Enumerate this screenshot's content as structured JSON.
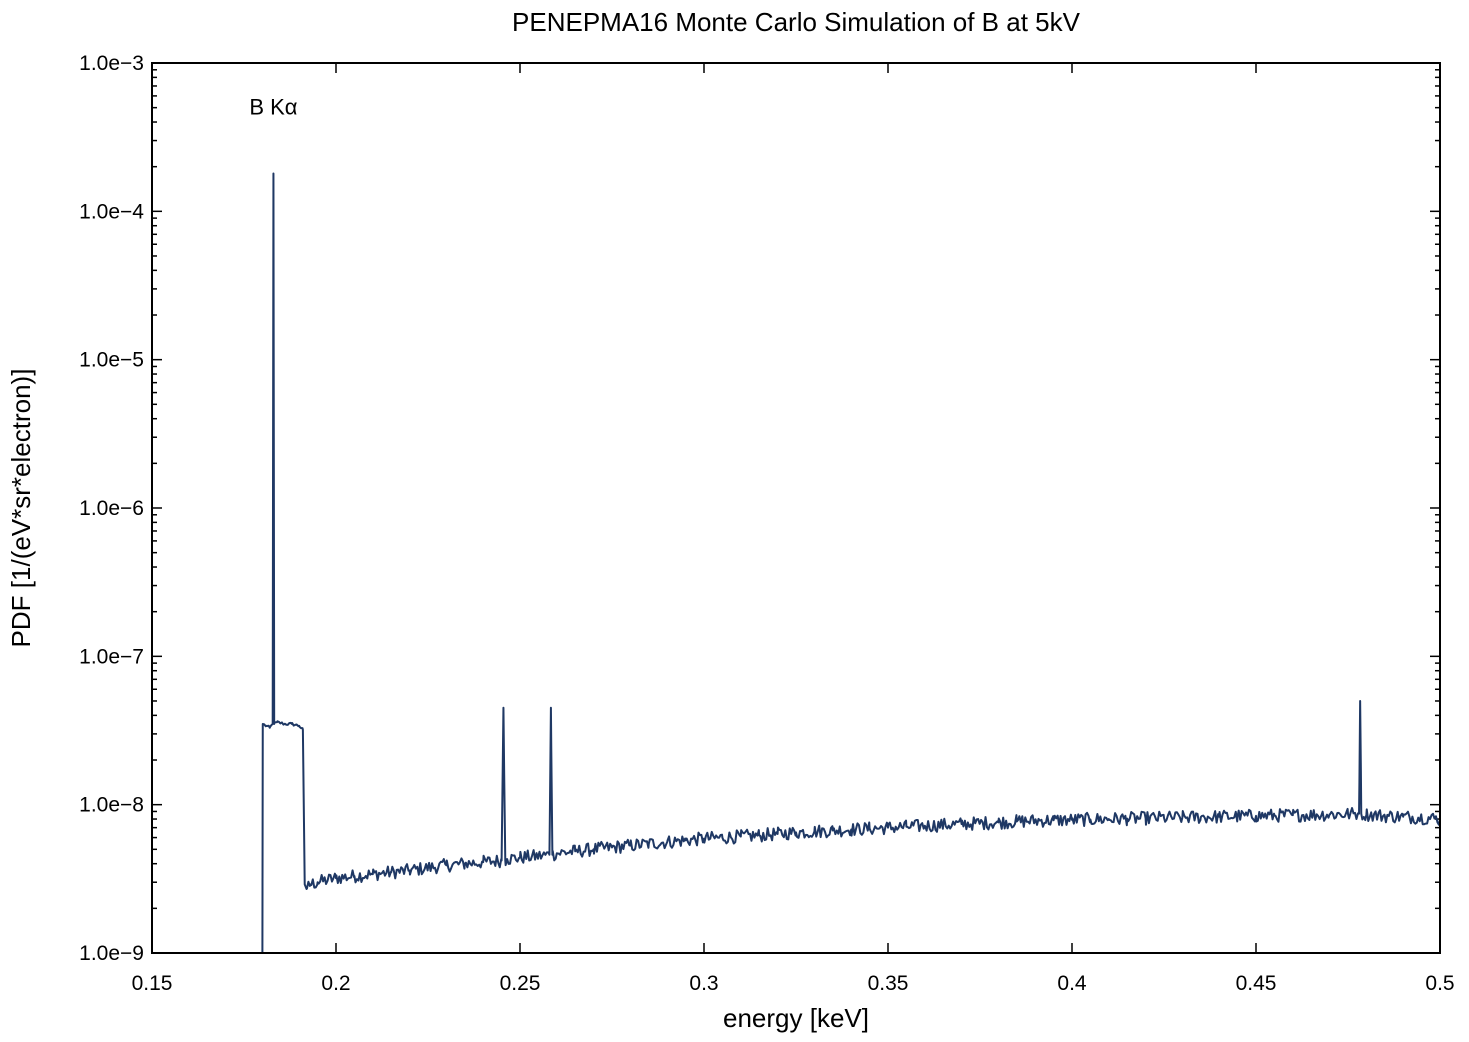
{
  "chart_data": {
    "type": "line",
    "title": "PENEPMA16 Monte Carlo Simulation of B at 5kV",
    "xlabel": "energy [keV]",
    "ylabel": "PDF [1/(eV*sr*electron)]",
    "xlim": [
      0.15,
      0.5
    ],
    "ylim": [
      1e-09,
      0.001
    ],
    "yscale": "log",
    "grid": false,
    "legend": "none",
    "x_ticks": [
      0.15,
      0.2,
      0.25,
      0.3,
      0.35,
      0.4,
      0.45,
      0.5
    ],
    "x_tick_labels": [
      "0.15",
      "0.2",
      "0.25",
      "0.3",
      "0.35",
      "0.4",
      "0.45",
      "0.5"
    ],
    "y_ticks": [
      1e-09,
      1e-08,
      1e-07,
      1e-06,
      1e-05,
      0.0001,
      0.001
    ],
    "y_tick_labels": [
      "1.0e−9",
      "1.0e−8",
      "1.0e−7",
      "1.0e−6",
      "1.0e−5",
      "1.0e−4",
      "1.0e−3"
    ],
    "annotations": [
      {
        "text": "B Kα",
        "x": 0.183,
        "y": 0.00045
      }
    ],
    "series": [
      {
        "color": "#1f3864",
        "x": [
          0.18,
          0.1801,
          0.181,
          0.182,
          0.1828,
          0.183,
          0.1832,
          0.184,
          0.186,
          0.188,
          0.19,
          0.191,
          0.1915,
          0.192,
          0.193,
          0.195,
          0.2,
          0.205,
          0.21,
          0.215,
          0.22,
          0.225,
          0.23,
          0.235,
          0.24,
          0.245,
          0.2455,
          0.246,
          0.2465,
          0.25,
          0.255,
          0.258,
          0.2584,
          0.2588,
          0.26,
          0.265,
          0.27,
          0.275,
          0.28,
          0.285,
          0.29,
          0.295,
          0.3,
          0.305,
          0.31,
          0.315,
          0.32,
          0.325,
          0.33,
          0.335,
          0.34,
          0.345,
          0.35,
          0.355,
          0.36,
          0.365,
          0.37,
          0.375,
          0.38,
          0.385,
          0.39,
          0.395,
          0.4,
          0.405,
          0.41,
          0.415,
          0.42,
          0.425,
          0.43,
          0.435,
          0.44,
          0.445,
          0.45,
          0.455,
          0.46,
          0.465,
          0.47,
          0.475,
          0.478,
          0.4783,
          0.4786,
          0.48,
          0.485,
          0.49,
          0.495,
          0.5
        ],
        "y": [
          1e-09,
          3.5e-08,
          3.4e-08,
          3.3e-08,
          3.5e-08,
          0.00018,
          3.5e-08,
          3.6e-08,
          3.5e-08,
          3.5e-08,
          3.4e-08,
          3.2e-08,
          2.9e-09,
          2.7e-09,
          2.9e-09,
          3e-09,
          3.2e-09,
          3.3e-09,
          3.4e-09,
          3.5e-09,
          3.6e-09,
          3.75e-09,
          3.9e-09,
          4e-09,
          4.1e-09,
          4.2e-09,
          4.5e-08,
          4.2e-09,
          4.3e-09,
          4.4e-09,
          4.5e-09,
          4.6e-09,
          4.5e-08,
          4.6e-09,
          4.7e-09,
          4.85e-09,
          5e-09,
          5.15e-09,
          5.3e-09,
          5.45e-09,
          5.6e-09,
          5.75e-09,
          5.9e-09,
          6e-09,
          6.1e-09,
          6.2e-09,
          6.35e-09,
          6.5e-09,
          6.6e-09,
          6.7e-09,
          6.8e-09,
          6.9e-09,
          7e-09,
          7.1e-09,
          7.2e-09,
          7.3e-09,
          7.4e-09,
          7.5e-09,
          7.6e-09,
          7.7e-09,
          7.8e-09,
          7.85e-09,
          7.9e-09,
          7.95e-09,
          8e-09,
          8.05e-09,
          8.1e-09,
          8.15e-09,
          8.2e-09,
          8.25e-09,
          8.3e-09,
          8.35e-09,
          8.4e-09,
          8.45e-09,
          8.5e-09,
          8.55e-09,
          8.6e-09,
          8.65e-09,
          8.7e-09,
          5e-08,
          8.7e-09,
          8.6e-09,
          8.4e-09,
          8.3e-09,
          8.2e-09,
          8e-09
        ]
      }
    ]
  }
}
